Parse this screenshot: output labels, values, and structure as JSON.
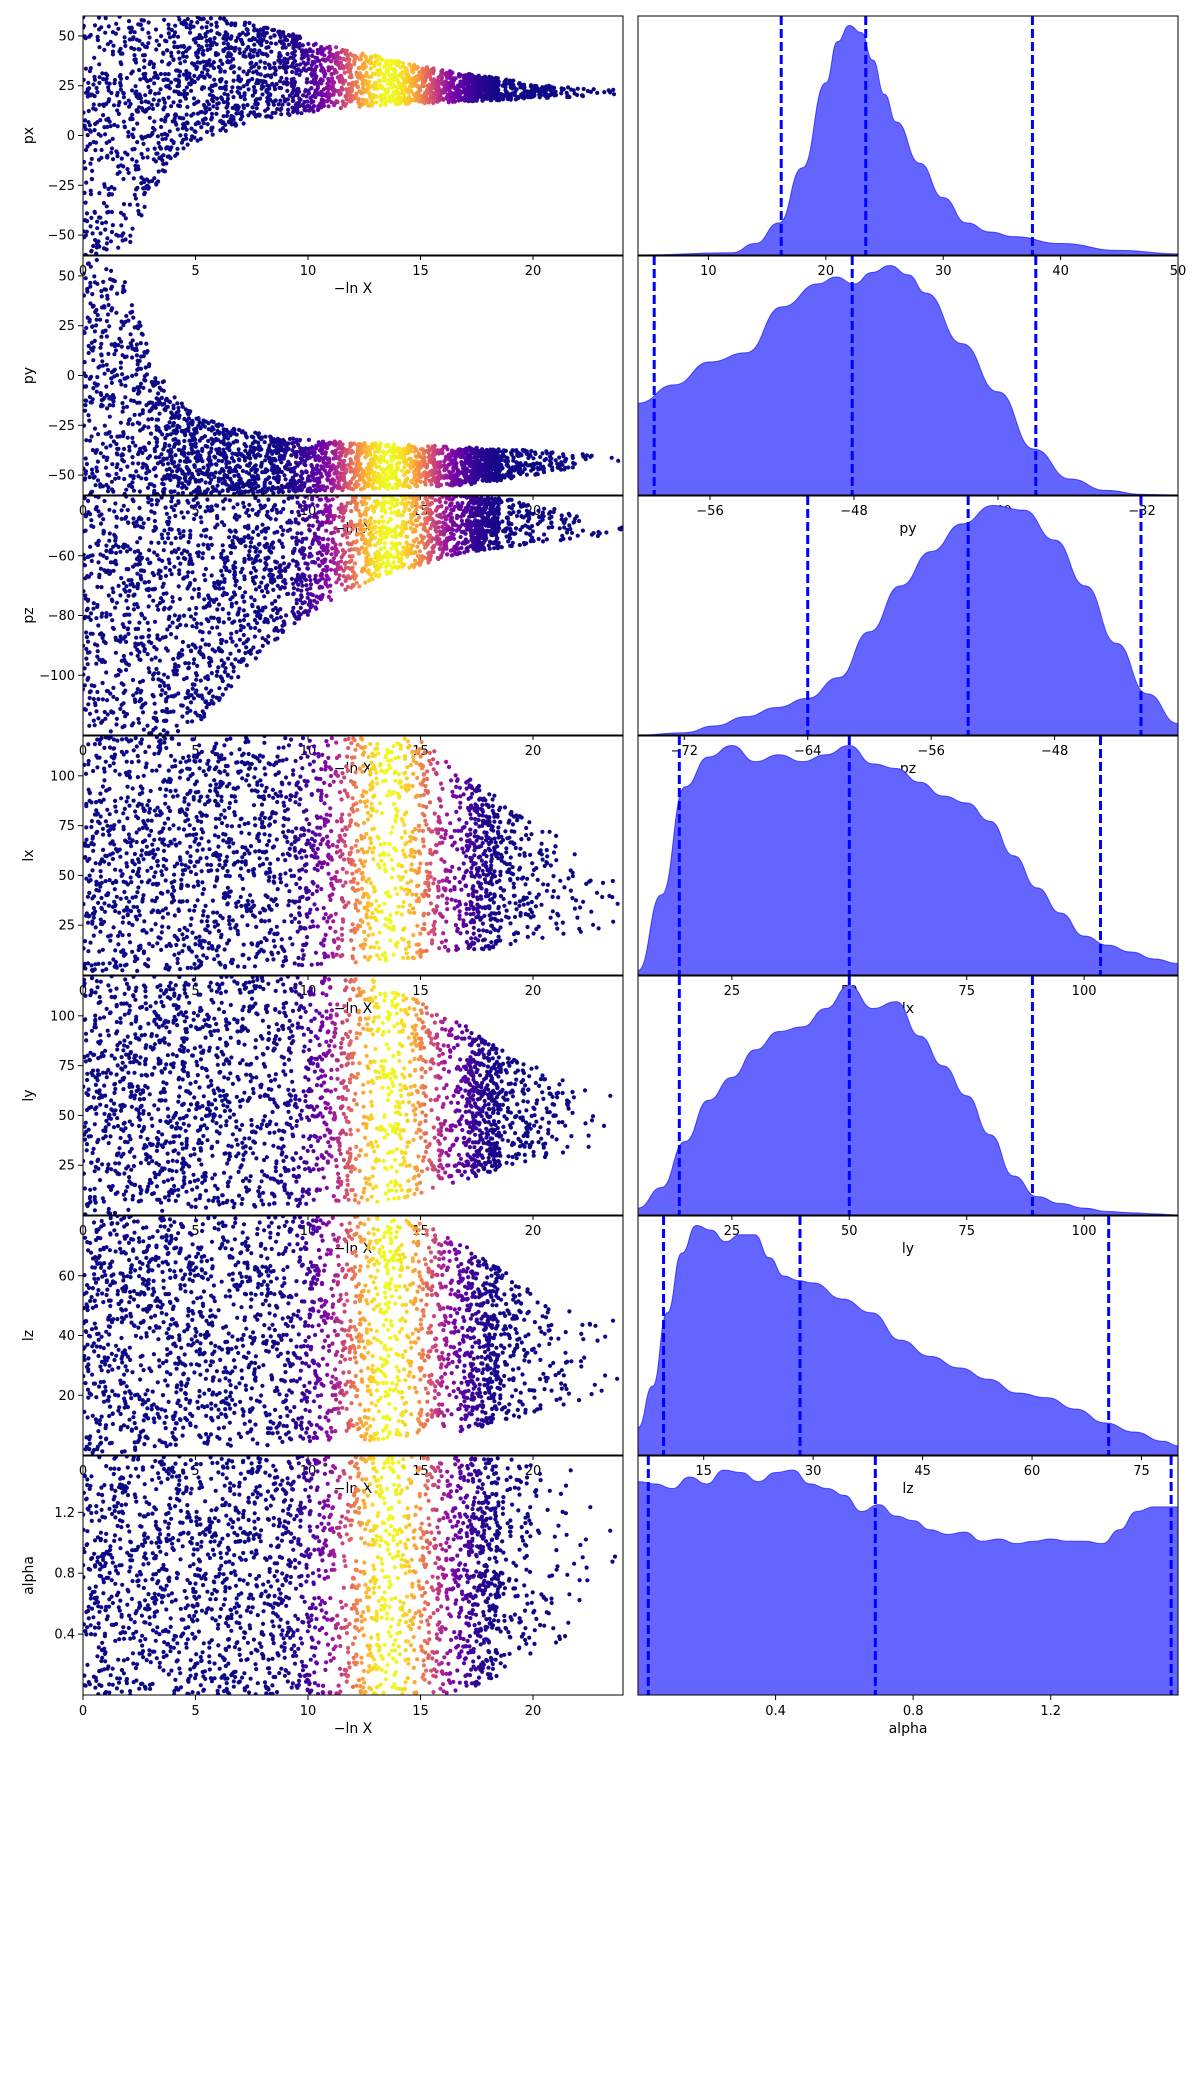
{
  "chart_data": [
    {
      "type": "scatter",
      "param": "px",
      "ylabel": "px",
      "xlabel": "−ln X",
      "xlim": [
        0,
        24
      ],
      "ylim": [
        -60,
        60
      ],
      "xticks": [
        "0",
        "5",
        "10",
        "15",
        "20"
      ],
      "yticks": [
        "−50",
        "−25",
        "0",
        "25",
        "50"
      ],
      "colormap": "plasma",
      "envelope": {
        "x": [
          0,
          1,
          2,
          3,
          4,
          5,
          7,
          9,
          11,
          13,
          15,
          17,
          19,
          21,
          23
        ],
        "lower": [
          -60,
          -60,
          -58,
          -30,
          -12,
          -3,
          5,
          10,
          13,
          15,
          16,
          17,
          18,
          19,
          20
        ],
        "upper": [
          60,
          60,
          60,
          60,
          60,
          60,
          58,
          52,
          45,
          40,
          35,
          31,
          28,
          25,
          23
        ]
      }
    },
    {
      "type": "area",
      "param": "px",
      "xlabel": "px",
      "xlim": [
        4,
        50
      ],
      "xticks": [
        "10",
        "20",
        "30",
        "40",
        "50"
      ],
      "fill_color": "#6464ff",
      "line_color": "#0000ff",
      "x": [
        4,
        12,
        14,
        16,
        18,
        20,
        21,
        22,
        23,
        24,
        25,
        26,
        28,
        30,
        32,
        34,
        36,
        40,
        45,
        50
      ],
      "density": [
        0,
        0.01,
        0.05,
        0.14,
        0.38,
        0.75,
        0.93,
        1.0,
        0.97,
        0.85,
        0.7,
        0.58,
        0.4,
        0.25,
        0.14,
        0.1,
        0.08,
        0.05,
        0.02,
        0.005
      ],
      "quantile_lines": [
        16.2,
        23.4,
        37.6
      ]
    },
    {
      "type": "scatter",
      "param": "py",
      "ylabel": "py",
      "xlabel": "−ln X",
      "xlim": [
        0,
        24
      ],
      "ylim": [
        -60,
        60
      ],
      "xticks": [
        "0",
        "5",
        "10",
        "15",
        "20"
      ],
      "yticks": [
        "−50",
        "−25",
        "0",
        "25",
        "50"
      ],
      "colormap": "plasma",
      "envelope": {
        "x": [
          0,
          1,
          2,
          3,
          4,
          5,
          7,
          9,
          11,
          13,
          15,
          17,
          19,
          21,
          23
        ],
        "lower": [
          -60,
          -60,
          -60,
          -60,
          -60,
          -60,
          -60,
          -59,
          -58,
          -57,
          -56,
          -55,
          -52,
          -48,
          -45
        ],
        "upper": [
          60,
          60,
          45,
          10,
          -10,
          -20,
          -27,
          -31,
          -33,
          -34,
          -35,
          -36,
          -37,
          -38,
          -39
        ]
      }
    },
    {
      "type": "area",
      "param": "py",
      "xlabel": "py",
      "xlim": [
        -60,
        -30
      ],
      "xticks": [
        "−56",
        "−48",
        "−40",
        "−32"
      ],
      "fill_color": "#6464ff",
      "line_color": "#0000ff",
      "x": [
        -60,
        -58,
        -56,
        -54,
        -52,
        -50,
        -49,
        -48,
        -47,
        -46,
        -45,
        -44,
        -42,
        -40,
        -38,
        -36,
        -34,
        -32,
        -30
      ],
      "density": [
        0.4,
        0.48,
        0.58,
        0.62,
        0.82,
        0.92,
        0.95,
        0.92,
        0.97,
        1.0,
        0.96,
        0.88,
        0.66,
        0.45,
        0.2,
        0.07,
        0.02,
        0.003,
        0
      ],
      "quantile_lines": [
        -59.1,
        -48.1,
        -37.9
      ]
    },
    {
      "type": "scatter",
      "param": "pz",
      "ylabel": "pz",
      "xlabel": "−ln X",
      "xlim": [
        0,
        24
      ],
      "ylim": [
        -120,
        -40
      ],
      "xticks": [
        "0",
        "5",
        "10",
        "15",
        "20"
      ],
      "yticks": [
        "−100",
        "−80",
        "−60"
      ],
      "colormap": "plasma",
      "envelope": {
        "x": [
          0,
          1,
          2,
          3,
          4,
          5,
          7,
          9,
          11,
          13,
          15,
          17,
          19,
          21,
          23
        ],
        "lower": [
          -120,
          -120,
          -120,
          -120,
          -120,
          -118,
          -100,
          -85,
          -75,
          -68,
          -63,
          -59,
          -57,
          -55,
          -54
        ],
        "upper": [
          -40,
          -40,
          -40,
          -40,
          -40,
          -40,
          -40,
          -40,
          -40,
          -40,
          -40,
          -40,
          -41,
          -44,
          -50
        ]
      }
    },
    {
      "type": "area",
      "param": "pz",
      "xlabel": "pz",
      "xlim": [
        -75,
        -40
      ],
      "xticks": [
        "−72",
        "−64",
        "−56",
        "−48"
      ],
      "fill_color": "#6464ff",
      "line_color": "#0000ff",
      "x": [
        -75,
        -72,
        -70,
        -68,
        -66,
        -64,
        -62,
        -60,
        -58,
        -56,
        -54,
        -52,
        -50,
        -48,
        -46,
        -44,
        -42,
        -40
      ],
      "density": [
        0,
        0.01,
        0.04,
        0.08,
        0.12,
        0.16,
        0.25,
        0.45,
        0.65,
        0.8,
        0.92,
        1.0,
        0.98,
        0.85,
        0.65,
        0.4,
        0.18,
        0.05
      ],
      "quantile_lines": [
        -64.0,
        -53.6,
        -42.4
      ]
    },
    {
      "type": "scatter",
      "param": "lx",
      "ylabel": "lx",
      "xlabel": "−ln X",
      "xlim": [
        0,
        24
      ],
      "ylim": [
        0,
        120
      ],
      "xticks": [
        "0",
        "5",
        "10",
        "15",
        "20"
      ],
      "yticks": [
        "25",
        "50",
        "75",
        "100"
      ],
      "colormap": "plasma",
      "envelope": {
        "x": [
          0,
          2,
          5,
          8,
          11,
          13,
          15,
          17,
          19,
          21,
          23
        ],
        "lower": [
          0,
          1,
          3,
          4,
          5,
          6,
          8,
          11,
          15,
          20,
          22
        ],
        "upper": [
          120,
          120,
          120,
          120,
          120,
          120,
          118,
          100,
          85,
          70,
          60
        ]
      }
    },
    {
      "type": "area",
      "param": "lx",
      "xlabel": "lx",
      "xlim": [
        5,
        120
      ],
      "xticks": [
        "25",
        "50",
        "75",
        "100"
      ],
      "fill_color": "#6464ff",
      "line_color": "#0000ff",
      "x": [
        5,
        10,
        15,
        20,
        25,
        30,
        35,
        40,
        45,
        50,
        55,
        60,
        65,
        70,
        75,
        80,
        85,
        90,
        95,
        100,
        105,
        110,
        115,
        120
      ],
      "density": [
        0.02,
        0.35,
        0.82,
        0.95,
        1.0,
        0.93,
        0.96,
        0.93,
        0.96,
        1.0,
        0.92,
        0.9,
        0.84,
        0.78,
        0.75,
        0.67,
        0.52,
        0.38,
        0.27,
        0.17,
        0.13,
        0.1,
        0.07,
        0.05
      ],
      "quantile_lines": [
        13.8,
        50.0,
        103.5
      ]
    },
    {
      "type": "scatter",
      "param": "ly",
      "ylabel": "ly",
      "xlabel": "−ln X",
      "xlim": [
        0,
        24
      ],
      "ylim": [
        0,
        120
      ],
      "xticks": [
        "0",
        "5",
        "10",
        "15",
        "20"
      ],
      "yticks": [
        "25",
        "50",
        "75",
        "100"
      ],
      "colormap": "plasma",
      "envelope": {
        "x": [
          0,
          2,
          5,
          8,
          11,
          13,
          15,
          17,
          19,
          21,
          23
        ],
        "lower": [
          0,
          1,
          3,
          4,
          5,
          6,
          10,
          17,
          25,
          30,
          35
        ],
        "upper": [
          120,
          120,
          120,
          120,
          120,
          118,
          108,
          95,
          80,
          70,
          60
        ]
      }
    },
    {
      "type": "area",
      "param": "ly",
      "xlabel": "ly",
      "xlim": [
        5,
        120
      ],
      "xticks": [
        "25",
        "50",
        "75",
        "100"
      ],
      "fill_color": "#6464ff",
      "line_color": "#0000ff",
      "x": [
        5,
        10,
        15,
        20,
        25,
        30,
        35,
        40,
        45,
        50,
        55,
        60,
        65,
        70,
        75,
        80,
        85,
        90,
        95,
        100,
        105,
        110,
        115,
        120
      ],
      "density": [
        0.03,
        0.12,
        0.32,
        0.5,
        0.6,
        0.72,
        0.8,
        0.82,
        0.9,
        1.0,
        0.9,
        0.93,
        0.78,
        0.65,
        0.52,
        0.35,
        0.17,
        0.08,
        0.05,
        0.03,
        0.015,
        0.01,
        0.005,
        0
      ],
      "quantile_lines": [
        13.8,
        50.0,
        89.0
      ]
    },
    {
      "type": "scatter",
      "param": "lz",
      "ylabel": "lz",
      "xlabel": "−ln X",
      "xlim": [
        0,
        24
      ],
      "ylim": [
        0,
        80
      ],
      "xticks": [
        "0",
        "5",
        "10",
        "15",
        "20"
      ],
      "yticks": [
        "20",
        "40",
        "60"
      ],
      "colormap": "plasma",
      "envelope": {
        "x": [
          0,
          2,
          5,
          8,
          11,
          13,
          15,
          17,
          19,
          21,
          23
        ],
        "lower": [
          0,
          1,
          2,
          3,
          4,
          5,
          6,
          8,
          12,
          16,
          20
        ],
        "upper": [
          80,
          80,
          80,
          80,
          80,
          80,
          78,
          70,
          60,
          50,
          45
        ]
      }
    },
    {
      "type": "area",
      "param": "lz",
      "xlabel": "lz",
      "xlim": [
        6,
        80
      ],
      "xticks": [
        "15",
        "30",
        "45",
        "60",
        "75"
      ],
      "fill_color": "#6464ff",
      "line_color": "#0000ff",
      "x": [
        6,
        8,
        10,
        12,
        14,
        16,
        18,
        20,
        22,
        24,
        26,
        28,
        30,
        34,
        38,
        42,
        46,
        50,
        54,
        58,
        62,
        66,
        70,
        74,
        78,
        80
      ],
      "density": [
        0.12,
        0.3,
        0.62,
        0.88,
        1.0,
        0.98,
        0.93,
        0.96,
        0.96,
        0.86,
        0.78,
        0.76,
        0.75,
        0.68,
        0.62,
        0.5,
        0.43,
        0.38,
        0.33,
        0.27,
        0.25,
        0.2,
        0.14,
        0.1,
        0.06,
        0.04
      ],
      "quantile_lines": [
        9.5,
        28.2,
        70.5
      ]
    },
    {
      "type": "scatter",
      "param": "alpha",
      "ylabel": "alpha",
      "xlabel": "−ln X",
      "xlim": [
        0,
        24
      ],
      "ylim": [
        0,
        1.57
      ],
      "xticks": [
        "0",
        "5",
        "10",
        "15",
        "20"
      ],
      "yticks": [
        "0.4",
        "0.8",
        "1.2"
      ],
      "colormap": "plasma",
      "envelope": {
        "x": [
          0,
          5,
          10,
          13,
          15,
          17,
          19,
          21,
          23
        ],
        "lower": [
          0,
          0,
          0,
          0,
          0,
          0.02,
          0.15,
          0.3,
          0.45
        ],
        "upper": [
          1.57,
          1.57,
          1.57,
          1.57,
          1.57,
          1.57,
          1.55,
          1.5,
          1.45
        ]
      }
    },
    {
      "type": "area",
      "param": "alpha",
      "xlabel": "alpha",
      "xlim": [
        0,
        1.57
      ],
      "xticks": [
        "0.4",
        "0.8",
        "1.2"
      ],
      "fill_color": "#6464ff",
      "line_color": "#0000ff",
      "x": [
        0,
        0.05,
        0.1,
        0.15,
        0.2,
        0.25,
        0.3,
        0.35,
        0.4,
        0.45,
        0.5,
        0.55,
        0.6,
        0.65,
        0.7,
        0.75,
        0.8,
        0.85,
        0.9,
        0.95,
        1.0,
        1.05,
        1.1,
        1.15,
        1.2,
        1.25,
        1.3,
        1.35,
        1.4,
        1.45,
        1.5,
        1.57
      ],
      "density": [
        0.93,
        0.92,
        0.9,
        0.95,
        0.92,
        0.98,
        0.97,
        0.93,
        0.97,
        0.98,
        0.92,
        0.9,
        0.87,
        0.8,
        0.83,
        0.78,
        0.76,
        0.72,
        0.7,
        0.71,
        0.67,
        0.68,
        0.66,
        0.67,
        0.68,
        0.67,
        0.67,
        0.66,
        0.72,
        0.8,
        0.82,
        0.82
      ],
      "quantile_lines": [
        0.03,
        0.69,
        1.55
      ]
    }
  ]
}
